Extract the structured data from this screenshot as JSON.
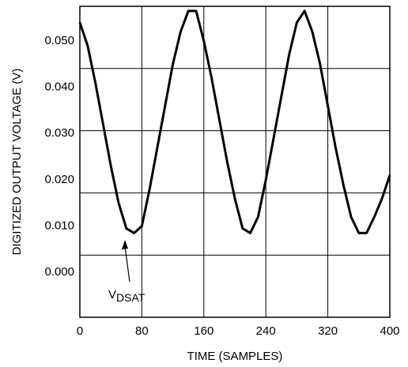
{
  "chart_data": {
    "type": "line",
    "x_label": "TIME (SAMPLES)",
    "y_label": "DIGITIZED OUTPUT VOLTAGE  (V)",
    "annotation": {
      "text": "V",
      "subscript": "DSAT"
    },
    "xlim": [
      0,
      400
    ],
    "xticks": [
      0,
      80,
      160,
      240,
      320,
      400
    ],
    "ylim": [
      -0.0097,
      0.0575
    ],
    "yticks": [
      {
        "value": 0.0,
        "label": "0.000"
      },
      {
        "value": 0.01,
        "label": "0.010"
      },
      {
        "value": 0.02,
        "label": "0.020"
      },
      {
        "value": 0.03,
        "label": "0.030"
      },
      {
        "value": 0.04,
        "label": "0.040"
      },
      {
        "value": 0.05,
        "label": "0.050"
      }
    ],
    "grid": true,
    "series": [
      {
        "color": "#000000",
        "x": [
          0,
          10,
          20,
          30,
          40,
          50,
          60,
          70,
          80,
          90,
          100,
          110,
          120,
          130,
          140,
          150,
          160,
          170,
          180,
          190,
          200,
          210,
          220,
          230,
          240,
          250,
          260,
          270,
          280,
          290,
          300,
          310,
          320,
          330,
          340,
          350,
          360,
          370,
          380,
          390,
          400
        ],
        "values": [
          0.054,
          0.049,
          0.041,
          0.032,
          0.023,
          0.015,
          0.0095,
          0.0085,
          0.01,
          0.018,
          0.027,
          0.036,
          0.045,
          0.052,
          0.0565,
          0.0565,
          0.05,
          0.042,
          0.033,
          0.024,
          0.016,
          0.0095,
          0.0085,
          0.012,
          0.02,
          0.029,
          0.038,
          0.047,
          0.054,
          0.0565,
          0.052,
          0.045,
          0.036,
          0.027,
          0.019,
          0.012,
          0.0085,
          0.0085,
          0.012,
          0.016,
          0.021
        ]
      }
    ]
  }
}
